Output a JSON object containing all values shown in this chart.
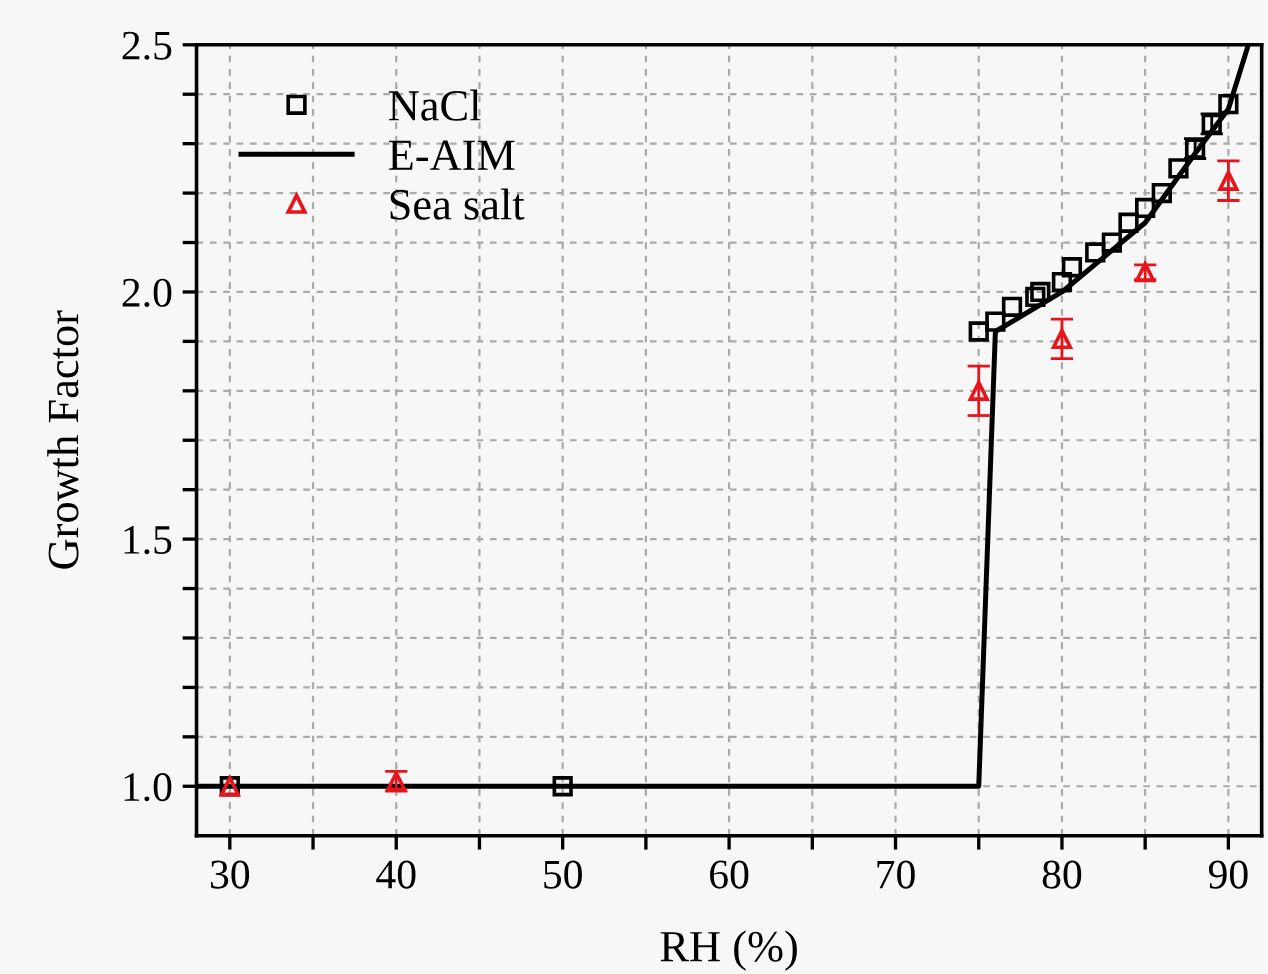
{
  "chart_data": {
    "type": "scatter",
    "xlabel": "RH (%)",
    "ylabel": "Growth Factor",
    "xlim": [
      28,
      92
    ],
    "ylim": [
      0.9,
      2.5
    ],
    "xticks": [
      30,
      {
        "value": 35,
        "label": null
      },
      40,
      {
        "value": 45,
        "label": null
      },
      50,
      {
        "value": 55,
        "label": null
      },
      60,
      {
        "value": 65,
        "label": null
      },
      70,
      {
        "value": 75,
        "label": null
      },
      80,
      {
        "value": 85,
        "label": null
      },
      90
    ],
    "yticks": [
      {
        "value": 1.0,
        "label": "1.0"
      },
      {
        "value": 1.1,
        "label": null
      },
      {
        "value": 1.2,
        "label": null
      },
      {
        "value": 1.3,
        "label": null
      },
      {
        "value": 1.4,
        "label": null
      },
      1.5,
      {
        "value": 1.6,
        "label": null
      },
      {
        "value": 1.7,
        "label": null
      },
      {
        "value": 1.8,
        "label": null
      },
      {
        "value": 1.9,
        "label": null
      },
      {
        "value": 2.0,
        "label": "2.0"
      },
      {
        "value": 2.1,
        "label": null
      },
      {
        "value": 2.2,
        "label": null
      },
      {
        "value": 2.3,
        "label": null
      },
      {
        "value": 2.4,
        "label": null
      },
      2.5
    ],
    "grid": true,
    "legend": "top left",
    "series": [
      {
        "name": "NaCl",
        "marker": "square",
        "color": "#000000",
        "x": [
          30,
          50,
          75,
          76,
          77,
          78.4,
          78.7,
          80,
          80.6,
          82,
          83,
          84,
          85,
          86,
          87,
          88,
          89,
          90
        ],
        "values": [
          1.0,
          1.0,
          1.92,
          1.94,
          1.97,
          1.99,
          2.0,
          2.02,
          2.05,
          2.08,
          2.1,
          2.14,
          2.17,
          2.2,
          2.25,
          2.29,
          2.34,
          2.38
        ],
        "errors": [
          null,
          null,
          null,
          null,
          null,
          null,
          null,
          null,
          null,
          null,
          null,
          null,
          null,
          null,
          null,
          0.02,
          0.02,
          null
        ]
      },
      {
        "name": "E-AIM",
        "type": "line",
        "line_style": "solid",
        "marker": "none",
        "color": "#000000",
        "x": [
          28,
          75,
          76,
          80,
          85,
          88,
          90,
          91.2
        ],
        "values": [
          1.0,
          1.0,
          1.92,
          2.0,
          2.14,
          2.28,
          2.37,
          2.5
        ]
      },
      {
        "name": "Sea salt",
        "marker": "triangle",
        "color": "#e8141c",
        "x": [
          30,
          40,
          75,
          80,
          85,
          90
        ],
        "values": [
          1.0,
          1.01,
          1.8,
          1.905,
          2.04,
          2.225
        ],
        "errors": [
          null,
          0.02,
          0.05,
          0.04,
          0.015,
          0.04
        ]
      }
    ]
  }
}
